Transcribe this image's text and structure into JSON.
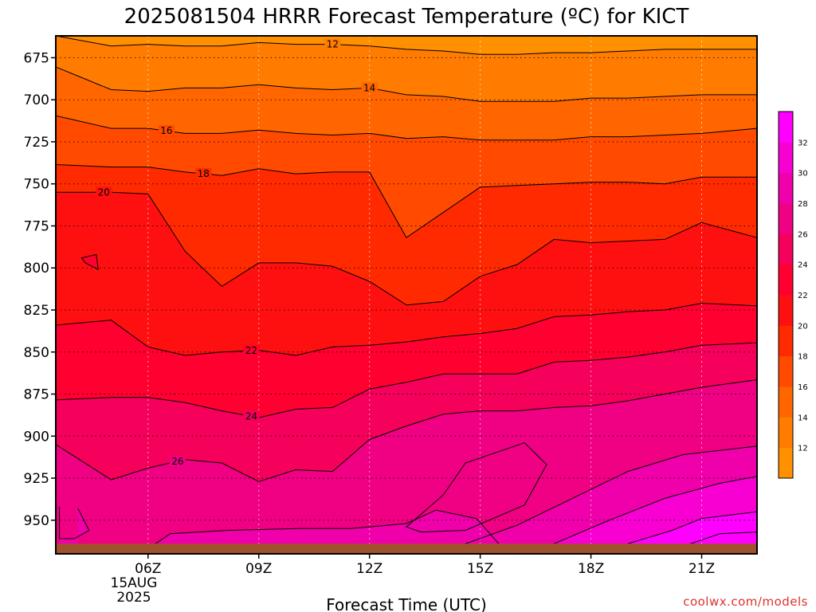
{
  "title": "2025081504 HRRR Forecast Temperature (ºC) for KICT",
  "xlabel": "Forecast Time (UTC)",
  "credit": "coolwx.com/models",
  "date_label": [
    "15AUG",
    "2025"
  ],
  "colors": {
    "ground": "#a0522d",
    "line": "#000000",
    "grid": "#b0b0b0"
  },
  "chart_data": {
    "type": "heatmap",
    "title": "2025081504 HRRR Forecast Temperature (ºC) for KICT",
    "xlabel": "Forecast Time (UTC)",
    "ylabel": "",
    "x_hours": [
      4,
      5,
      6,
      7,
      8,
      9,
      10,
      11,
      12,
      13,
      14,
      15,
      16,
      17,
      18,
      19,
      20,
      21,
      22
    ],
    "x_ticks": [
      {
        "hour": 6,
        "label": "06Z"
      },
      {
        "hour": 9,
        "label": "09Z"
      },
      {
        "hour": 12,
        "label": "12Z"
      },
      {
        "hour": 15,
        "label": "15Z"
      },
      {
        "hour": 18,
        "label": "18Z"
      },
      {
        "hour": 21,
        "label": "21Z"
      }
    ],
    "y_ticks": [
      675,
      700,
      725,
      750,
      775,
      800,
      825,
      850,
      875,
      900,
      925,
      950
    ],
    "ylim_hPa": [
      662,
      970
    ],
    "xlim_hours": [
      3.5,
      22.5
    ],
    "surface_pressure_hPa": 964,
    "colorbar": {
      "levels": [
        10,
        12,
        14,
        16,
        18,
        20,
        22,
        24,
        26,
        28,
        30,
        32,
        34
      ],
      "tick_labels": [
        "12",
        "14",
        "16",
        "18",
        "20",
        "22",
        "24",
        "26",
        "28",
        "30",
        "32"
      ],
      "colors": [
        "#ff9000",
        "#ff7c00",
        "#ff6600",
        "#ff4a00",
        "#ff2a00",
        "#ff1010",
        "#ff0030",
        "#f5005a",
        "#f00082",
        "#f000aa",
        "#f800d2",
        "#ff00ff"
      ]
    },
    "contours": [
      {
        "level": 12,
        "label_hour": 11,
        "label_side": "top",
        "pressure_hPa": [
          664,
          668,
          667,
          668,
          668,
          666,
          667,
          667,
          668,
          670,
          671,
          673,
          673,
          672,
          672,
          671,
          670,
          670,
          670
        ]
      },
      {
        "level": 14,
        "label_hour": 12,
        "label_side": "top",
        "pressure_hPa": [
          685,
          694,
          695,
          693,
          693,
          691,
          693,
          694,
          693,
          697,
          698,
          701,
          701,
          701,
          699,
          699,
          698,
          697,
          697
        ]
      },
      {
        "level": 16,
        "label_hour": 6.5,
        "label_side": "top",
        "pressure_hPa": [
          712,
          717,
          717,
          720,
          720,
          718,
          720,
          721,
          720,
          723,
          722,
          724,
          724,
          724,
          722,
          722,
          721,
          720,
          718
        ]
      },
      {
        "level": 18,
        "label_hour": 7.5,
        "label_side": "top",
        "pressure_hPa": [
          739,
          740,
          740,
          743,
          745,
          741,
          744,
          743,
          743,
          782,
          767,
          752,
          751,
          750,
          749,
          749,
          750,
          746,
          746
        ]
      },
      {
        "level": 20,
        "label_hour": 4.8,
        "label_side": "bottom",
        "pressure_hPa": [
          755,
          755,
          756,
          790,
          811,
          797,
          797,
          799,
          808,
          822,
          820,
          805,
          798,
          783,
          785,
          784,
          783,
          773,
          779
        ]
      },
      {
        "level": 22,
        "label_hour": 8.8,
        "label_side": "top",
        "pressure_hPa": [
          833,
          831,
          847,
          852,
          850,
          849,
          852,
          847,
          846,
          844,
          841,
          839,
          836,
          829,
          828,
          826,
          825,
          821,
          822
        ]
      },
      {
        "level": 24,
        "label_hour": 8.8,
        "label_side": "top",
        "pressure_hPa": [
          878,
          877,
          877,
          880,
          885,
          889,
          884,
          883,
          872,
          868,
          863,
          863,
          863,
          856,
          855,
          853,
          850,
          846,
          845
        ]
      },
      {
        "level": 26,
        "label_hour": 6.8,
        "label_side": "top",
        "pressure_hPa": [
          912,
          926,
          919,
          914,
          916,
          927,
          920,
          921,
          902,
          894,
          887,
          885,
          885,
          883,
          882,
          879,
          875,
          871,
          868
        ]
      }
    ],
    "closed_contours": [
      {
        "level": 22,
        "points": [
          [
            4.2,
            794
          ],
          [
            4.6,
            792
          ],
          [
            4.65,
            801
          ],
          [
            4.3,
            797
          ]
        ]
      },
      {
        "level": 26,
        "points": [
          [
            14.6,
            916
          ],
          [
            16.2,
            904
          ],
          [
            16.8,
            917
          ],
          [
            16.2,
            941
          ],
          [
            14.6,
            956
          ],
          [
            13.4,
            957
          ],
          [
            13.0,
            954
          ],
          [
            14.0,
            935
          ]
        ]
      }
    ],
    "warm_surface_contours": [
      {
        "level": 28,
        "points": [
          [
            4.1,
            943
          ],
          [
            4.4,
            956
          ],
          [
            4.0,
            961
          ],
          [
            3.6,
            961
          ],
          [
            3.6,
            942
          ]
        ]
      },
      {
        "level": 28,
        "points": [
          [
            6.2,
            964
          ],
          [
            6.6,
            958
          ],
          [
            8.2,
            956
          ],
          [
            10.1,
            955
          ],
          [
            11.5,
            955
          ],
          [
            13.0,
            952
          ],
          [
            13.8,
            944
          ],
          [
            14.9,
            949
          ],
          [
            15.5,
            964
          ]
        ]
      },
      {
        "level": 28,
        "points": [
          [
            14.6,
            964
          ],
          [
            16.0,
            953
          ],
          [
            17.5,
            937
          ],
          [
            19.0,
            921
          ],
          [
            20.5,
            911
          ],
          [
            22.5,
            906
          ]
        ]
      },
      {
        "level": 30,
        "points": [
          [
            17.0,
            964
          ],
          [
            18.5,
            950
          ],
          [
            20.0,
            937
          ],
          [
            21.5,
            928
          ],
          [
            22.5,
            924
          ]
        ]
      },
      {
        "level": 32,
        "points": [
          [
            19.0,
            964
          ],
          [
            20.2,
            956
          ],
          [
            21.0,
            949
          ],
          [
            22.5,
            945
          ]
        ]
      },
      {
        "level": 34,
        "points": [
          [
            20.7,
            964
          ],
          [
            21.5,
            958
          ],
          [
            22.5,
            957
          ]
        ]
      }
    ]
  }
}
